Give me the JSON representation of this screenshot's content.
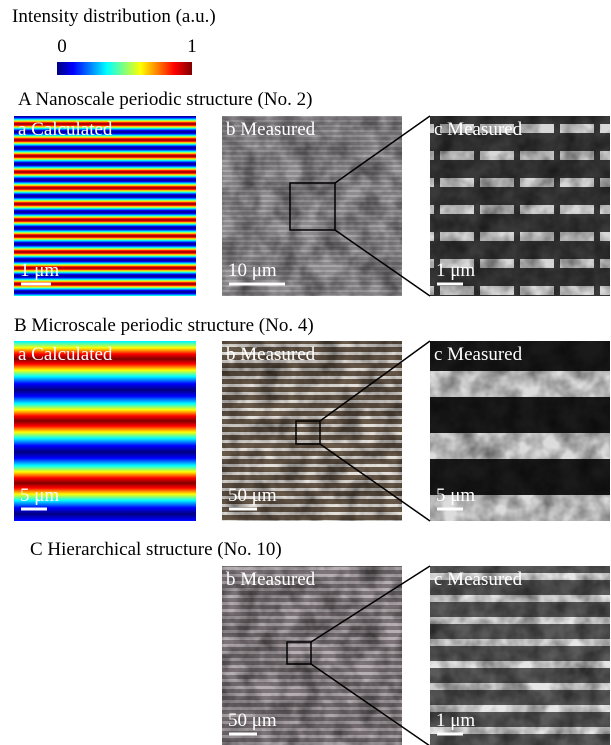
{
  "header": {
    "title": "Intensity distribution (a.u.)",
    "colorbar": {
      "min_label": "0",
      "max_label": "1"
    }
  },
  "sections": [
    {
      "title": "A Nanoscale periodic structure (No. 2)",
      "panels": [
        {
          "label": "a Calculated",
          "scale_bar": "1 μm"
        },
        {
          "label": "b Measured",
          "scale_bar": "10 μm"
        },
        {
          "label": "c Measured",
          "scale_bar": "1 μm"
        }
      ]
    },
    {
      "title": "B Microscale periodic structure (No. 4)",
      "panels": [
        {
          "label": "a Calculated",
          "scale_bar": "5 μm"
        },
        {
          "label": "b Measured",
          "scale_bar": "50 μm"
        },
        {
          "label": "c Measured",
          "scale_bar": "5 μm"
        }
      ]
    },
    {
      "title": "C Hierarchical structure (No. 10)",
      "panels": [
        {
          "label": "b Measured",
          "scale_bar": "50 μm"
        },
        {
          "label": "c Measured",
          "scale_bar": "1 μm"
        }
      ]
    }
  ]
}
